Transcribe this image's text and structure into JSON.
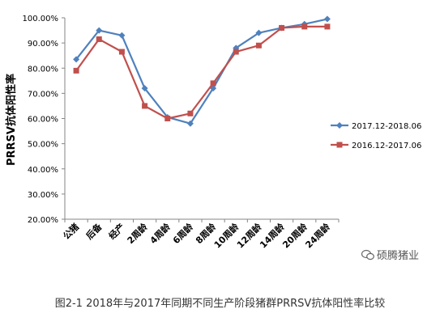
{
  "chart_data": {
    "type": "line",
    "categories": [
      "公猪",
      "后备",
      "经产",
      "2周龄",
      "4周龄",
      "6周龄",
      "8周龄",
      "10周龄",
      "12周龄",
      "14周龄",
      "20周龄",
      "24周龄"
    ],
    "series": [
      {
        "name": "2017.12-2018.06",
        "color": "#4F81BD",
        "marker": "diamond",
        "values": [
          83.5,
          95.0,
          93.0,
          72.0,
          60.5,
          58.0,
          72.0,
          88.0,
          94.0,
          96.0,
          97.5,
          99.5
        ]
      },
      {
        "name": "2016.12-2017.06",
        "color": "#C0504D",
        "marker": "square",
        "values": [
          79.0,
          91.5,
          86.5,
          65.0,
          60.0,
          62.0,
          74.0,
          86.5,
          89.0,
          96.0,
          96.5,
          96.5
        ]
      }
    ],
    "ylabel": "PRRSV抗体阳性率",
    "ylim": [
      20,
      100
    ],
    "yticks": [
      "20.00%",
      "30.00%",
      "40.00%",
      "50.00%",
      "60.00%",
      "70.00%",
      "80.00%",
      "90.00%",
      "100.00%"
    ],
    "grid": false,
    "legend": "right"
  },
  "caption": "图2-1 2018年与2017年同期不同生产阶段猪群PRRSV抗体阳性率比较",
  "watermark": "硕腾猪业"
}
